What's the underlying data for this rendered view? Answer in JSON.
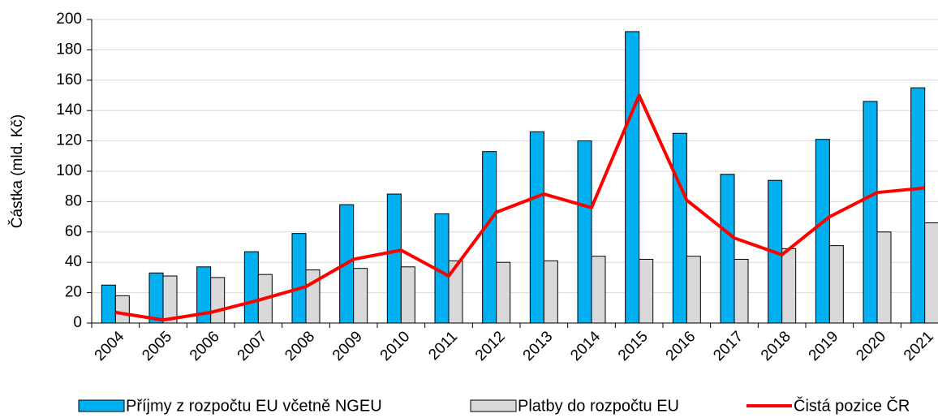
{
  "chart_data": {
    "type": "bar",
    "y_label": "Částka (mld. Kč)",
    "categories": [
      "2004",
      "2005",
      "2006",
      "2007",
      "2008",
      "2009",
      "2010",
      "2011",
      "2012",
      "2013",
      "2014",
      "2015",
      "2016",
      "2017",
      "2018",
      "2019",
      "2020",
      "2021"
    ],
    "series": [
      {
        "name": "Příjmy z rozpočtu EU včetně NGEU",
        "color": "#00b0f0",
        "type": "bar",
        "values": [
          25,
          33,
          37,
          47,
          59,
          78,
          85,
          72,
          113,
          126,
          120,
          192,
          125,
          98,
          94,
          121,
          146,
          155
        ]
      },
      {
        "name": "Platby do rozpočtu EU",
        "color": "#d9d9d9",
        "type": "bar",
        "values": [
          18,
          31,
          30,
          32,
          35,
          36,
          37,
          41,
          40,
          41,
          44,
          42,
          44,
          42,
          49,
          51,
          60,
          66
        ]
      },
      {
        "name": "Čistá pozice ČR",
        "color": "#ff0000",
        "type": "line",
        "values": [
          7,
          2,
          7,
          15,
          24,
          42,
          48,
          31,
          73,
          85,
          76,
          150,
          81,
          56,
          45,
          70,
          86,
          89
        ]
      }
    ],
    "ylim": [
      0,
      200
    ],
    "yticks": [
      0,
      20,
      40,
      60,
      80,
      100,
      120,
      140,
      160,
      180,
      200
    ],
    "grid": true,
    "legend": "bottom"
  }
}
